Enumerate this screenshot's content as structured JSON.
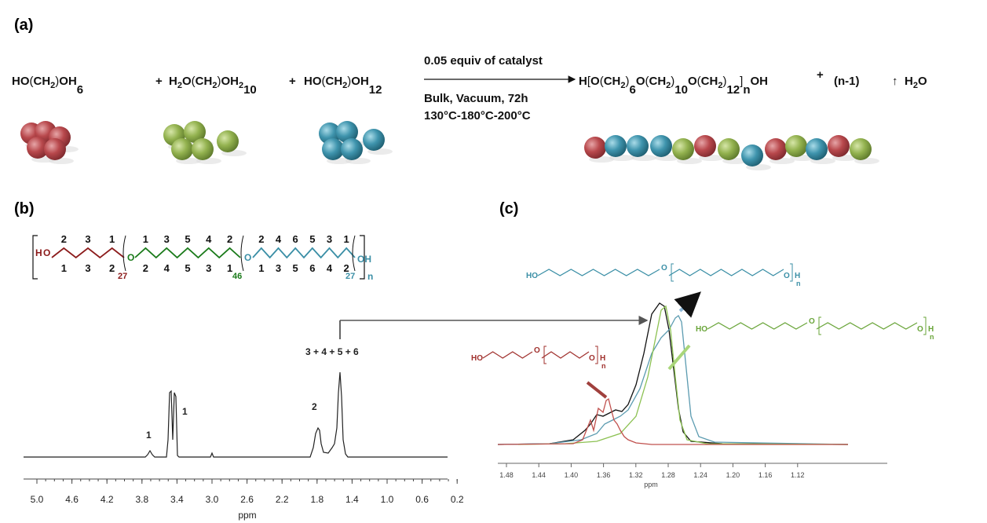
{
  "panel_labels": {
    "a": "(a)",
    "b": "(b)",
    "c": "(c)"
  },
  "scheme": {
    "reactants": [
      [
        {
          "text": "HO"
        },
        {
          "text": "("
        },
        {
          "text": "CH"
        },
        {
          "text": "2",
          "sub": true
        },
        {
          "text": ")"
        },
        {
          "text": "OH"
        },
        {
          "text": "6",
          "low": true
        }
      ],
      [
        {
          "text": "H"
        },
        {
          "text": "2",
          "sub": true
        },
        {
          "text": "O"
        },
        {
          "text": "("
        },
        {
          "text": "CH"
        },
        {
          "text": "2",
          "sub": true
        },
        {
          "text": ")"
        },
        {
          "text": "OH"
        },
        {
          "text": "2",
          "sub": true
        },
        {
          "text": "10",
          "low": true
        }
      ],
      [
        {
          "text": "HO"
        },
        {
          "text": "("
        },
        {
          "text": "CH"
        },
        {
          "text": "2",
          "sub": true
        },
        {
          "text": ")"
        },
        {
          "text": "OH"
        },
        {
          "text": "12",
          "low": true
        }
      ]
    ],
    "plus": [
      "+",
      "+"
    ],
    "conditions": {
      "above": "0.05 equiv of catalyst",
      "below": [
        "Bulk, Vacuum, 72h",
        "130°C-180°C-200°C"
      ]
    },
    "product": [
      {
        "text": "H"
      },
      {
        "text": "["
      },
      {
        "text": "O"
      },
      {
        "text": "("
      },
      {
        "text": "CH"
      },
      {
        "text": "2",
        "sub": true
      },
      {
        "text": ")"
      },
      {
        "text": "6",
        "low": true
      },
      {
        "text": "O"
      },
      {
        "text": "("
      },
      {
        "text": "CH"
      },
      {
        "text": "2",
        "sub": true
      },
      {
        "text": ")"
      },
      {
        "text": "10",
        "low": true
      },
      {
        "text": "O"
      },
      {
        "text": "("
      },
      {
        "text": "CH"
      },
      {
        "text": "2",
        "sub": true
      },
      {
        "text": ")"
      },
      {
        "text": "12",
        "low": true
      },
      {
        "text": "]"
      },
      {
        "text": "n",
        "low": true
      },
      {
        "text": "OH"
      }
    ],
    "byproduct": {
      "plus": "+",
      "coefficient": "(n-1)",
      "arrow": "↑",
      "formula": [
        {
          "text": "H"
        },
        {
          "text": "2",
          "sub": true
        },
        {
          "text": "O"
        }
      ]
    }
  },
  "structure": {
    "left_end": "H",
    "oxygens": [
      "O",
      "O",
      "O"
    ],
    "right_end": "OH",
    "n": "n",
    "repeats": [
      "27",
      "46",
      "27"
    ],
    "top_numbers": [
      [
        "2",
        "3",
        "1"
      ],
      [
        "1",
        "3",
        "5",
        "4",
        "2"
      ],
      [
        "2",
        "4",
        "6",
        "5",
        "3",
        "1"
      ]
    ],
    "bottom_numbers": [
      [
        "1",
        "3",
        "2"
      ],
      [
        "2",
        "4",
        "5",
        "3",
        "1"
      ],
      [
        "1",
        "3",
        "5",
        "6",
        "4",
        "2"
      ]
    ]
  },
  "spectrum_b": {
    "peak_labels": [
      "1",
      "1",
      "2",
      "3 + 4 + 5 + 6"
    ],
    "ticks": [
      "5.0",
      "4.6",
      "4.2",
      "3.8",
      "3.4",
      "3.0",
      "2.6",
      "2.2",
      "1.8",
      "1.4",
      "1.0",
      "0.6",
      "0.2"
    ],
    "axis_label": "ppm"
  },
  "spectrum_c": {
    "ticks": [
      "1.48",
      "1.44",
      "1.40",
      "1.36",
      "1.32",
      "1.28",
      "1.24",
      "1.20",
      "1.16",
      "1.12"
    ],
    "axis_label": "ppm",
    "molecules": [
      {
        "left": "HO",
        "middle": "O",
        "right": "O",
        "end": "H",
        "n": "n"
      },
      {
        "left": "HO",
        "middle": "O",
        "right": "O",
        "end": "H",
        "n": "n"
      },
      {
        "left": "HO",
        "middle": "O",
        "right": "O",
        "end": "H",
        "n": "n"
      }
    ]
  }
}
